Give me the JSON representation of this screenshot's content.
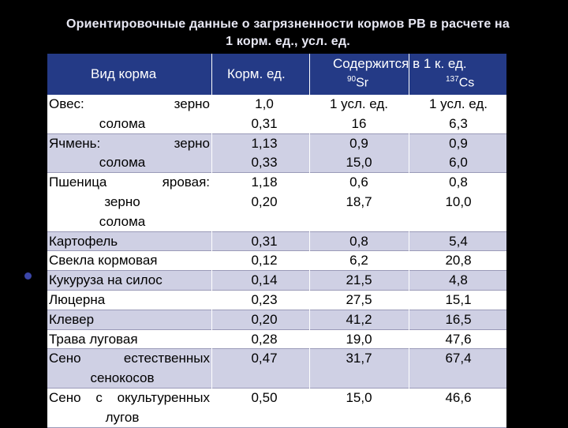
{
  "title": {
    "line1": "Ориентировочные данные о загрязненности кормов РВ в расчете на",
    "line2": "1 корм. ед., усл. ед."
  },
  "table": {
    "headers": {
      "feed_type": "Вид корма",
      "feed_units": "Корм. ед.",
      "contains": "Содержится в 1 к. ед.",
      "sr_mass": "90",
      "sr_symbol": "Sr",
      "cs_mass": "137",
      "cs_symbol": "Cs"
    },
    "rows": [
      {
        "lines": [
          "Овес: зерно",
          "солома"
        ],
        "ku": [
          "1,0",
          "0,31"
        ],
        "sr": [
          "1 усл. ед.",
          "16"
        ],
        "cs": [
          "1 усл. ед.",
          "6,3"
        ]
      },
      {
        "lines": [
          "Ячмень: зерно",
          "солома"
        ],
        "ku": [
          "1,13",
          "0,33"
        ],
        "sr": [
          "0,9",
          "15,0"
        ],
        "cs": [
          "0,9",
          "6,0"
        ]
      },
      {
        "lines": [
          "Пшеница яровая:",
          "зерно",
          "солома"
        ],
        "ku": [
          "1,18",
          "0,20"
        ],
        "sr": [
          "0,6",
          "18,7"
        ],
        "cs": [
          "0,8",
          "10,0"
        ]
      },
      {
        "lines": [
          "Картофель"
        ],
        "ku": [
          "0,31"
        ],
        "sr": [
          "0,8"
        ],
        "cs": [
          "5,4"
        ]
      },
      {
        "lines": [
          "Свекла кормовая"
        ],
        "ku": [
          "0,12"
        ],
        "sr": [
          "6,2"
        ],
        "cs": [
          "20,8"
        ]
      },
      {
        "lines": [
          "Кукуруза на силос"
        ],
        "ku": [
          "0,14"
        ],
        "sr": [
          "21,5"
        ],
        "cs": [
          "4,8"
        ]
      },
      {
        "lines": [
          "Люцерна"
        ],
        "ku": [
          "0,23"
        ],
        "sr": [
          "27,5"
        ],
        "cs": [
          "15,1"
        ]
      },
      {
        "lines": [
          "Клевер"
        ],
        "ku": [
          "0,20"
        ],
        "sr": [
          "41,2"
        ],
        "cs": [
          "16,5"
        ]
      },
      {
        "lines": [
          "Трава луговая"
        ],
        "ku": [
          "0,28"
        ],
        "sr": [
          "19,0"
        ],
        "cs": [
          "47,6"
        ]
      },
      {
        "lines": [
          "Сено естественных",
          "сенокосов"
        ],
        "ku": [
          "0,47"
        ],
        "sr": [
          "31,7"
        ],
        "cs": [
          "67,4"
        ]
      },
      {
        "lines": [
          "Сено с окультуренных",
          "лугов"
        ],
        "ku": [
          "0,50"
        ],
        "sr": [
          "15,0"
        ],
        "cs": [
          "46,6"
        ]
      }
    ]
  }
}
